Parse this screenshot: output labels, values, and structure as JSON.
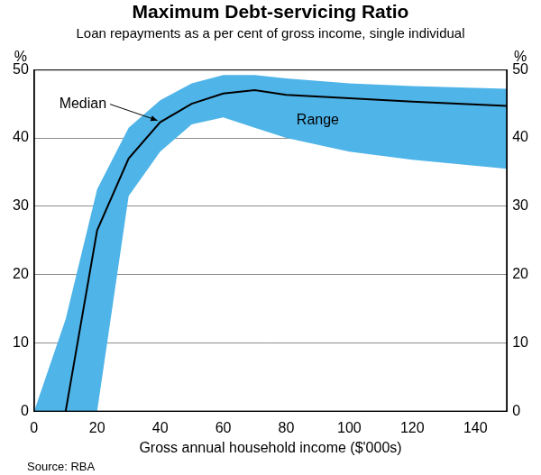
{
  "chart_data": {
    "type": "line",
    "title": "Maximum Debt-servicing Ratio",
    "subtitle": "Loan repayments as a per cent of gross income, single individual",
    "x_label": "Gross annual household income ($'000s)",
    "y_label": "%",
    "source": "Source: RBA",
    "x": [
      0,
      10,
      20,
      30,
      40,
      50,
      60,
      70,
      80,
      100,
      120,
      150
    ],
    "series": [
      {
        "name": "Range",
        "type": "area",
        "color": "#4fb4e8",
        "lower": [
          0,
          0,
          0,
          31.5,
          38,
          42,
          43,
          41.5,
          40,
          38,
          36.8,
          35.5
        ],
        "upper": [
          0,
          13.5,
          32.5,
          41.5,
          45.5,
          48,
          49.2,
          49.2,
          48.7,
          48,
          47.6,
          47.2
        ]
      },
      {
        "name": "Median",
        "type": "line",
        "color": "#000000",
        "values": [
          null,
          0,
          26.5,
          37,
          42.3,
          45,
          46.5,
          47,
          46.3,
          45.8,
          45.3,
          44.7
        ]
      }
    ],
    "xlim": [
      0,
      150
    ],
    "xticks": [
      0,
      20,
      40,
      60,
      80,
      100,
      120,
      140
    ],
    "ylim": [
      0,
      50
    ],
    "yticks": [
      0,
      10,
      20,
      30,
      40,
      50
    ],
    "grid": true
  }
}
